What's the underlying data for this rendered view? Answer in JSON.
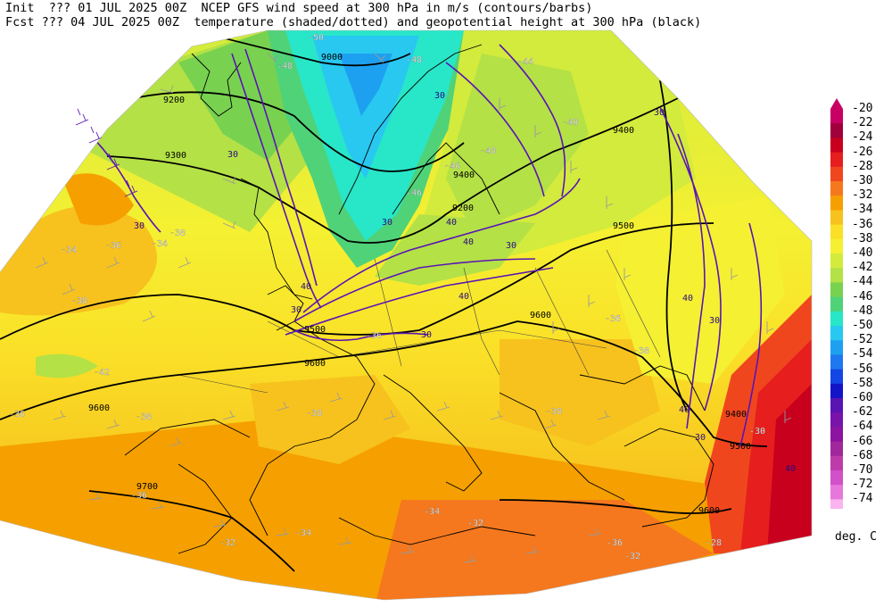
{
  "header": {
    "init_line": "Init  ??? 01 JUL 2025 00Z  NCEP GFS wind speed at 300 hPa in m/s (contours/barbs)",
    "fcst_line": "Fcst ??? 04 JUL 2025 00Z  temperature (shaded/dotted) and geopotential height at 300 hPa (black)"
  },
  "legend": {
    "units": "deg. C",
    "levels": [
      "-20",
      "-22",
      "-24",
      "-26",
      "-28",
      "-30",
      "-32",
      "-34",
      "-36",
      "-38",
      "-40",
      "-42",
      "-44",
      "-46",
      "-48",
      "-50",
      "-52",
      "-54",
      "-56",
      "-58",
      "-60",
      "-62",
      "-64",
      "-66",
      "-68",
      "-70",
      "-72",
      "-74"
    ],
    "colors": [
      "#c80064",
      "#a0003c",
      "#c8001e",
      "#e61e1e",
      "#f0461e",
      "#f5781e",
      "#f5a000",
      "#f7c21e",
      "#fae128",
      "#f5f032",
      "#d2eb3c",
      "#b4e146",
      "#78d250",
      "#50d278",
      "#28e6c8",
      "#28c8f0",
      "#1ea0f0",
      "#1e78f0",
      "#1446e6",
      "#1414c8",
      "#5a14b4",
      "#7814aa",
      "#8c14a0",
      "#a0289b",
      "#be3caa",
      "#d250c8",
      "#e678dc",
      "#fab4f0"
    ]
  },
  "height_labels": [
    "9000",
    "9200",
    "9300",
    "9400",
    "9500",
    "9600",
    "9700",
    "9400",
    "9500",
    "9600",
    "9500",
    "9600",
    "9600",
    "9200",
    "9400"
  ],
  "wind_labels": [
    "30",
    "30",
    "30",
    "40",
    "40",
    "30",
    "40",
    "30",
    "30",
    "40",
    "40",
    "30",
    "40",
    "30",
    "30",
    "40",
    "30"
  ],
  "temp_labels": [
    "-50",
    "-48",
    "-48",
    "-46",
    "-46",
    "-44",
    "-48",
    "-40",
    "-42",
    "-38",
    "-36",
    "-34",
    "-34",
    "-38",
    "-36",
    "-38",
    "-38",
    "-36",
    "-34",
    "-32",
    "-32",
    "-36",
    "-38",
    "-36",
    "-34",
    "-32",
    "-28",
    "-30",
    "-36",
    "-38"
  ]
}
